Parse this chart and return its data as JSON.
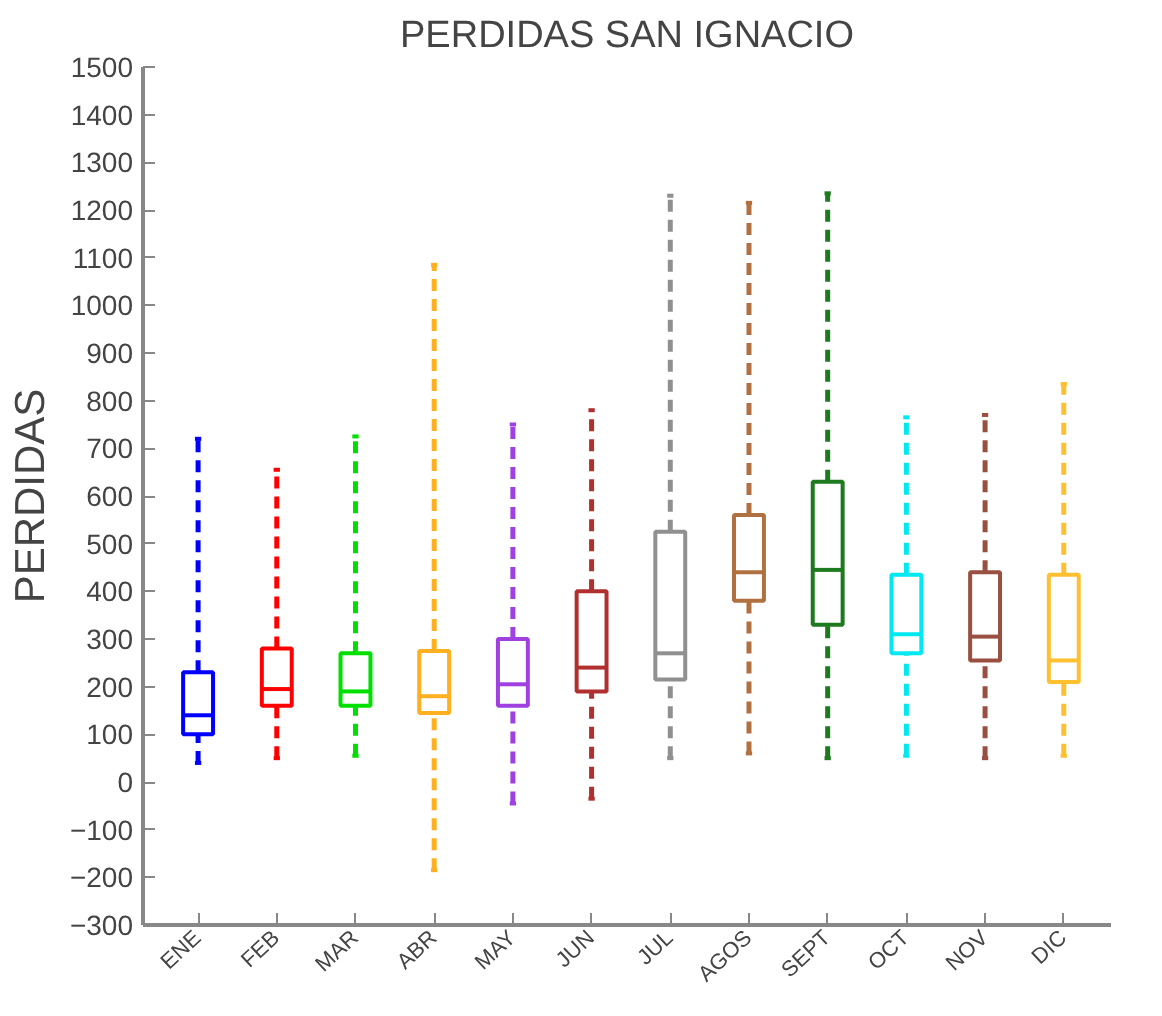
{
  "chart_data": {
    "type": "box",
    "title": "PERDIDAS SAN IGNACIO",
    "ylabel": "PERDIDAS",
    "categories": [
      "ENE",
      "FEB",
      "MAR",
      "ABR",
      "MAY",
      "JUN",
      "JUL",
      "AGOS",
      "SEPT",
      "OCT",
      "NOV",
      "DIC"
    ],
    "colors": [
      "#0000ff",
      "#ff0000",
      "#00e000",
      "#ffb020",
      "#a040e0",
      "#b03030",
      "#909090",
      "#b07040",
      "#1e7a1e",
      "#00e8f0",
      "#9a5040",
      "#ffc030"
    ],
    "boxes": [
      {
        "low": 40,
        "q1": 100,
        "median": 140,
        "q3": 230,
        "high": 720
      },
      {
        "low": 50,
        "q1": 160,
        "median": 195,
        "q3": 280,
        "high": 655
      },
      {
        "low": 55,
        "q1": 160,
        "median": 190,
        "q3": 270,
        "high": 725
      },
      {
        "low": -185,
        "q1": 145,
        "median": 180,
        "q3": 275,
        "high": 1085
      },
      {
        "low": -45,
        "q1": 160,
        "median": 205,
        "q3": 300,
        "high": 750
      },
      {
        "low": -35,
        "q1": 190,
        "median": 240,
        "q3": 400,
        "high": 780
      },
      {
        "low": 50,
        "q1": 215,
        "median": 270,
        "q3": 525,
        "high": 1230
      },
      {
        "low": 60,
        "q1": 380,
        "median": 440,
        "q3": 560,
        "high": 1215
      },
      {
        "low": 50,
        "q1": 330,
        "median": 445,
        "q3": 630,
        "high": 1235
      },
      {
        "low": 55,
        "q1": 270,
        "median": 310,
        "q3": 435,
        "high": 765
      },
      {
        "low": 50,
        "q1": 255,
        "median": 305,
        "q3": 440,
        "high": 770
      },
      {
        "low": 55,
        "q1": 210,
        "median": 255,
        "q3": 435,
        "high": 835
      }
    ],
    "ylim": [
      -300,
      1500
    ],
    "yticks": [
      -300,
      -200,
      -100,
      0,
      100,
      200,
      300,
      400,
      500,
      600,
      700,
      800,
      900,
      1000,
      1100,
      1200,
      1300,
      1400,
      1500
    ],
    "grid": false
  }
}
